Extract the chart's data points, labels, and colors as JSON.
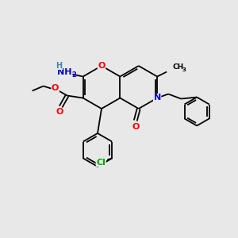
{
  "bg_color": "#e8e8e8",
  "atom_colors": {
    "O": "#ff0000",
    "N": "#0000cc",
    "Cl": "#00aa00",
    "C": "#000000",
    "H": "#4488aa"
  },
  "bond_color": "#000000",
  "bond_lw": 1.3,
  "font_size_atom": 8.0,
  "font_size_sub": 5.5
}
